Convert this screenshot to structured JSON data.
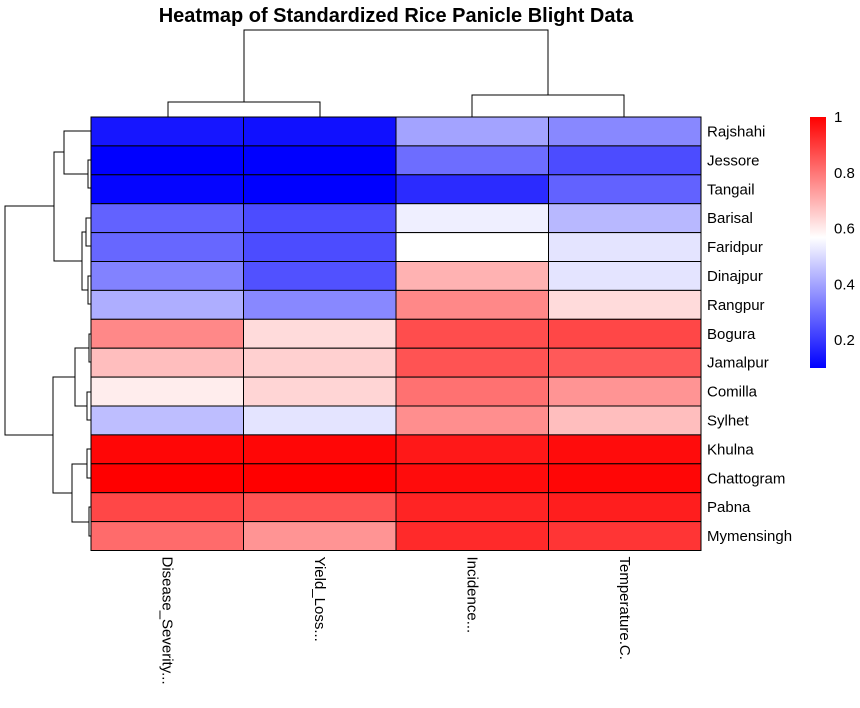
{
  "chart_data": {
    "type": "heatmap",
    "title": "Heatmap of Standardized Rice Panicle Blight Data",
    "columns": [
      "Disease_Severity...",
      "Yield_Loss...",
      "Incidence...",
      "Temperature.C."
    ],
    "rows": [
      "Rajshahi",
      "Jessore",
      "Tangail",
      "Barisal",
      "Faridpur",
      "Dinajpur",
      "Rangpur",
      "Bogura",
      "Jamalpur",
      "Comilla",
      "Sylhet",
      "Khulna",
      "Chattogram",
      "Pabna",
      "Mymensingh"
    ],
    "values": [
      [
        0.14,
        0.13,
        0.4,
        0.35
      ],
      [
        0.07,
        0.09,
        0.3,
        0.24
      ],
      [
        0.11,
        0.07,
        0.18,
        0.28
      ],
      [
        0.28,
        0.24,
        0.54,
        0.44
      ],
      [
        0.29,
        0.24,
        0.57,
        0.52
      ],
      [
        0.34,
        0.25,
        0.7,
        0.52
      ],
      [
        0.42,
        0.35,
        0.77,
        0.63
      ],
      [
        0.77,
        0.63,
        0.87,
        0.88
      ],
      [
        0.68,
        0.65,
        0.86,
        0.85
      ],
      [
        0.6,
        0.64,
        0.81,
        0.75
      ],
      [
        0.45,
        0.52,
        0.76,
        0.68
      ],
      [
        0.99,
        0.99,
        0.96,
        0.98
      ],
      [
        1.0,
        1.0,
        0.98,
        0.99
      ],
      [
        0.88,
        0.86,
        0.94,
        0.95
      ],
      [
        0.82,
        0.75,
        0.93,
        0.91
      ]
    ],
    "color_scale": {
      "low": "#0000ff",
      "mid": "#ffffff",
      "high": "#ff0000",
      "min": 0.1,
      "mid_value": 0.57,
      "max": 1.0
    },
    "legend": {
      "ticks": [
        "1",
        "0.8",
        "0.6",
        "0.4",
        "0.2"
      ],
      "tick_values": [
        1.0,
        0.8,
        0.6,
        0.4,
        0.2
      ],
      "position": "right"
    },
    "row_dendrogram": true,
    "column_dendrogram": true
  }
}
